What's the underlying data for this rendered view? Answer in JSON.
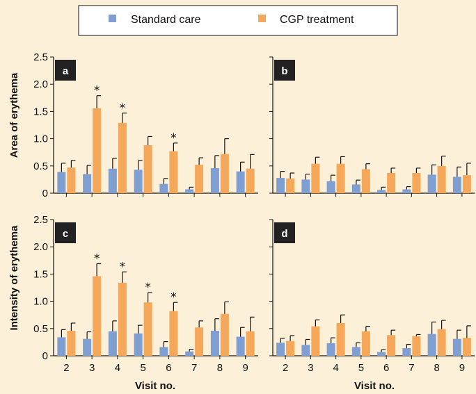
{
  "legend": {
    "standard_care": "Standard care",
    "cgp_treatment": "CGP treatment"
  },
  "colors": {
    "standard_care": "#7f9fd3",
    "cgp_treatment": "#f5a75a",
    "background": "#fdf0d8"
  },
  "chart_data": [
    {
      "panel": "a",
      "type": "bar",
      "ylabel": "Area of erythema",
      "xlabel": "",
      "ylim": [
        0,
        2.5
      ],
      "yticks": [
        "0",
        "0.5",
        "1.0",
        "1.5",
        "2.0",
        "2.5"
      ],
      "categories": [
        "2",
        "3",
        "4",
        "5",
        "6",
        "7",
        "8",
        "9"
      ],
      "series": [
        {
          "name": "Standard care",
          "values": [
            0.39,
            0.35,
            0.45,
            0.43,
            0.17,
            0.07,
            0.46,
            0.4
          ],
          "errors": [
            0.16,
            0.16,
            0.19,
            0.17,
            0.1,
            0.04,
            0.23,
            0.17
          ]
        },
        {
          "name": "CGP treatment",
          "values": [
            0.47,
            1.56,
            1.29,
            0.88,
            0.77,
            0.52,
            0.72,
            0.45
          ],
          "errors": [
            0.13,
            0.23,
            0.18,
            0.16,
            0.15,
            0.13,
            0.28,
            0.26
          ]
        }
      ],
      "significant": [
        "3",
        "4",
        "6"
      ]
    },
    {
      "panel": "b",
      "type": "bar",
      "ylabel": "",
      "xlabel": "",
      "ylim": [
        0,
        2.5
      ],
      "categories": [
        "2",
        "3",
        "4",
        "5",
        "6",
        "7",
        "8",
        "9"
      ],
      "series": [
        {
          "name": "Standard care",
          "values": [
            0.28,
            0.25,
            0.22,
            0.16,
            0.06,
            0.07,
            0.34,
            0.3
          ],
          "errors": [
            0.12,
            0.1,
            0.11,
            0.08,
            0.05,
            0.05,
            0.18,
            0.18
          ]
        },
        {
          "name": "CGP treatment",
          "values": [
            0.27,
            0.54,
            0.54,
            0.44,
            0.37,
            0.37,
            0.5,
            0.33
          ],
          "errors": [
            0.1,
            0.12,
            0.13,
            0.1,
            0.09,
            0.09,
            0.18,
            0.22
          ]
        }
      ],
      "significant": []
    },
    {
      "panel": "c",
      "type": "bar",
      "ylabel": "Intensity of erythema",
      "xlabel": "Visit no.",
      "ylim": [
        0,
        2.5
      ],
      "yticks": [
        "0",
        "0.5",
        "1.0",
        "1.5",
        "2.0",
        "2.5"
      ],
      "categories": [
        "2",
        "3",
        "4",
        "5",
        "6",
        "7",
        "8",
        "9"
      ],
      "series": [
        {
          "name": "Standard care",
          "values": [
            0.34,
            0.31,
            0.45,
            0.41,
            0.16,
            0.08,
            0.46,
            0.35
          ],
          "errors": [
            0.14,
            0.13,
            0.19,
            0.15,
            0.1,
            0.04,
            0.22,
            0.17
          ]
        },
        {
          "name": "CGP treatment",
          "values": [
            0.46,
            1.46,
            1.34,
            0.98,
            0.82,
            0.52,
            0.77,
            0.45
          ],
          "errors": [
            0.14,
            0.23,
            0.2,
            0.18,
            0.16,
            0.12,
            0.22,
            0.26
          ]
        }
      ],
      "significant": [
        "3",
        "4",
        "5",
        "6"
      ]
    },
    {
      "panel": "d",
      "type": "bar",
      "ylabel": "",
      "xlabel": "Visit no.",
      "ylim": [
        0,
        2.5
      ],
      "categories": [
        "2",
        "3",
        "4",
        "5",
        "6",
        "7",
        "8",
        "9"
      ],
      "series": [
        {
          "name": "Standard care",
          "values": [
            0.24,
            0.2,
            0.23,
            0.16,
            0.07,
            0.14,
            0.4,
            0.31
          ],
          "errors": [
            0.08,
            0.1,
            0.1,
            0.08,
            0.04,
            0.07,
            0.22,
            0.16
          ]
        },
        {
          "name": "CGP treatment",
          "values": [
            0.27,
            0.54,
            0.6,
            0.45,
            0.38,
            0.36,
            0.49,
            0.33
          ],
          "errors": [
            0.1,
            0.12,
            0.15,
            0.09,
            0.09,
            0.03,
            0.16,
            0.22
          ]
        }
      ],
      "significant": []
    }
  ]
}
